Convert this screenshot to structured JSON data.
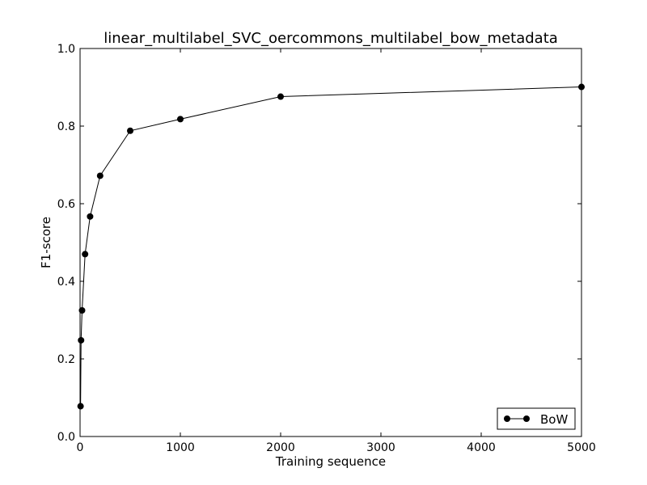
{
  "chart_data": {
    "type": "line",
    "title": "linear_multilabel_SVC_oercommons_multilabel_bow_metadata",
    "xlabel": "Training sequence",
    "ylabel": "F1-score",
    "xlim": [
      0,
      5000
    ],
    "ylim": [
      0.0,
      1.0
    ],
    "xticks": [
      0,
      1000,
      2000,
      3000,
      4000,
      5000
    ],
    "xtick_labels": [
      "0",
      "1000",
      "2000",
      "3000",
      "4000",
      "5000"
    ],
    "yticks": [
      0.0,
      0.2,
      0.4,
      0.6,
      0.8,
      1.0
    ],
    "ytick_labels": [
      "0.0",
      "0.2",
      "0.4",
      "0.6",
      "0.8",
      "1.0"
    ],
    "grid": false,
    "legend_position": "bottom-right",
    "series": [
      {
        "name": "BoW",
        "color": "#000000",
        "marker": "circle",
        "x": [
          5,
          10,
          20,
          50,
          100,
          200,
          500,
          1000,
          2000,
          5000
        ],
        "y": [
          0.078,
          0.248,
          0.325,
          0.47,
          0.567,
          0.672,
          0.788,
          0.818,
          0.876,
          0.901
        ]
      }
    ]
  }
}
